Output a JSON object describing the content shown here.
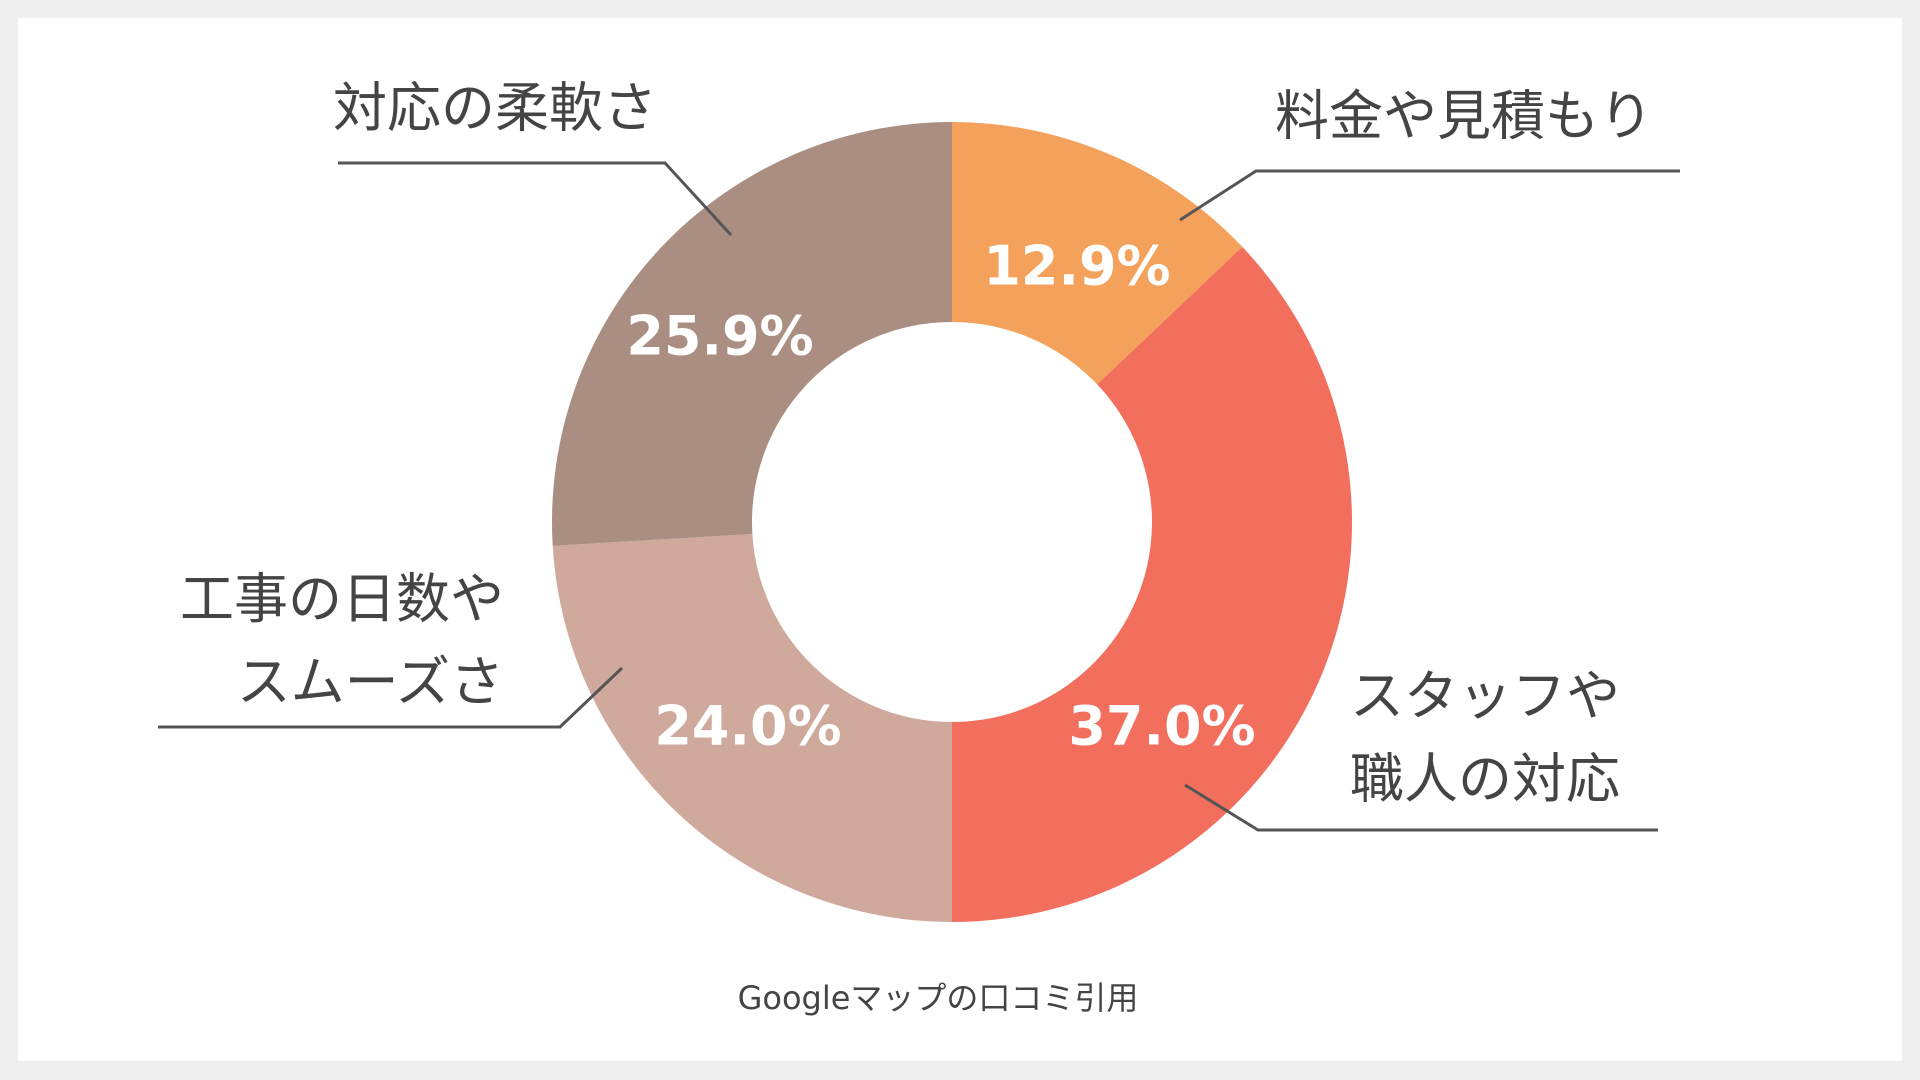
{
  "chart_data": {
    "type": "pie",
    "donut": true,
    "start": "top",
    "direction": "clockwise",
    "categories": [
      [
        "料金や見積もり"
      ],
      [
        "スタッフや",
        "職人の対応"
      ],
      [
        "工事の日数や",
        "スムーズさ"
      ],
      [
        "対応の柔軟さ"
      ]
    ],
    "values": [
      12.9,
      37.0,
      24.0,
      25.9
    ],
    "value_labels": [
      "12.9%",
      "37.0%",
      "24.0%",
      "25.9%"
    ],
    "colors": [
      "#f4a15c",
      "#f26e5d",
      "#cfa99c",
      "#ab8e82"
    ],
    "legend": "none",
    "source": "Googleマップの口コミ引用"
  }
}
